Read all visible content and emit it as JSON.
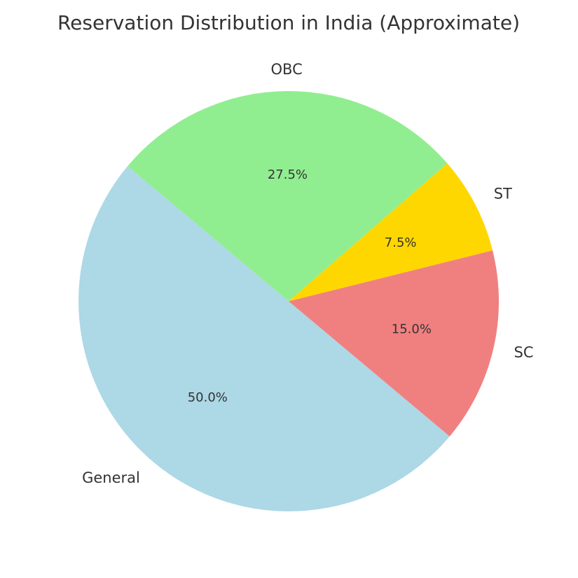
{
  "chart_data": {
    "type": "pie",
    "title": "Reservation Distribution in India (Approximate)",
    "categories": [
      "General",
      "SC",
      "ST",
      "OBC"
    ],
    "values": [
      50,
      15,
      7.5,
      27.5
    ],
    "value_labels": [
      "50.0%",
      "15.0%",
      "7.5%",
      "27.5%"
    ],
    "colors": [
      "#add8e6",
      "#f08080",
      "#ffd700",
      "#90ee90"
    ]
  }
}
